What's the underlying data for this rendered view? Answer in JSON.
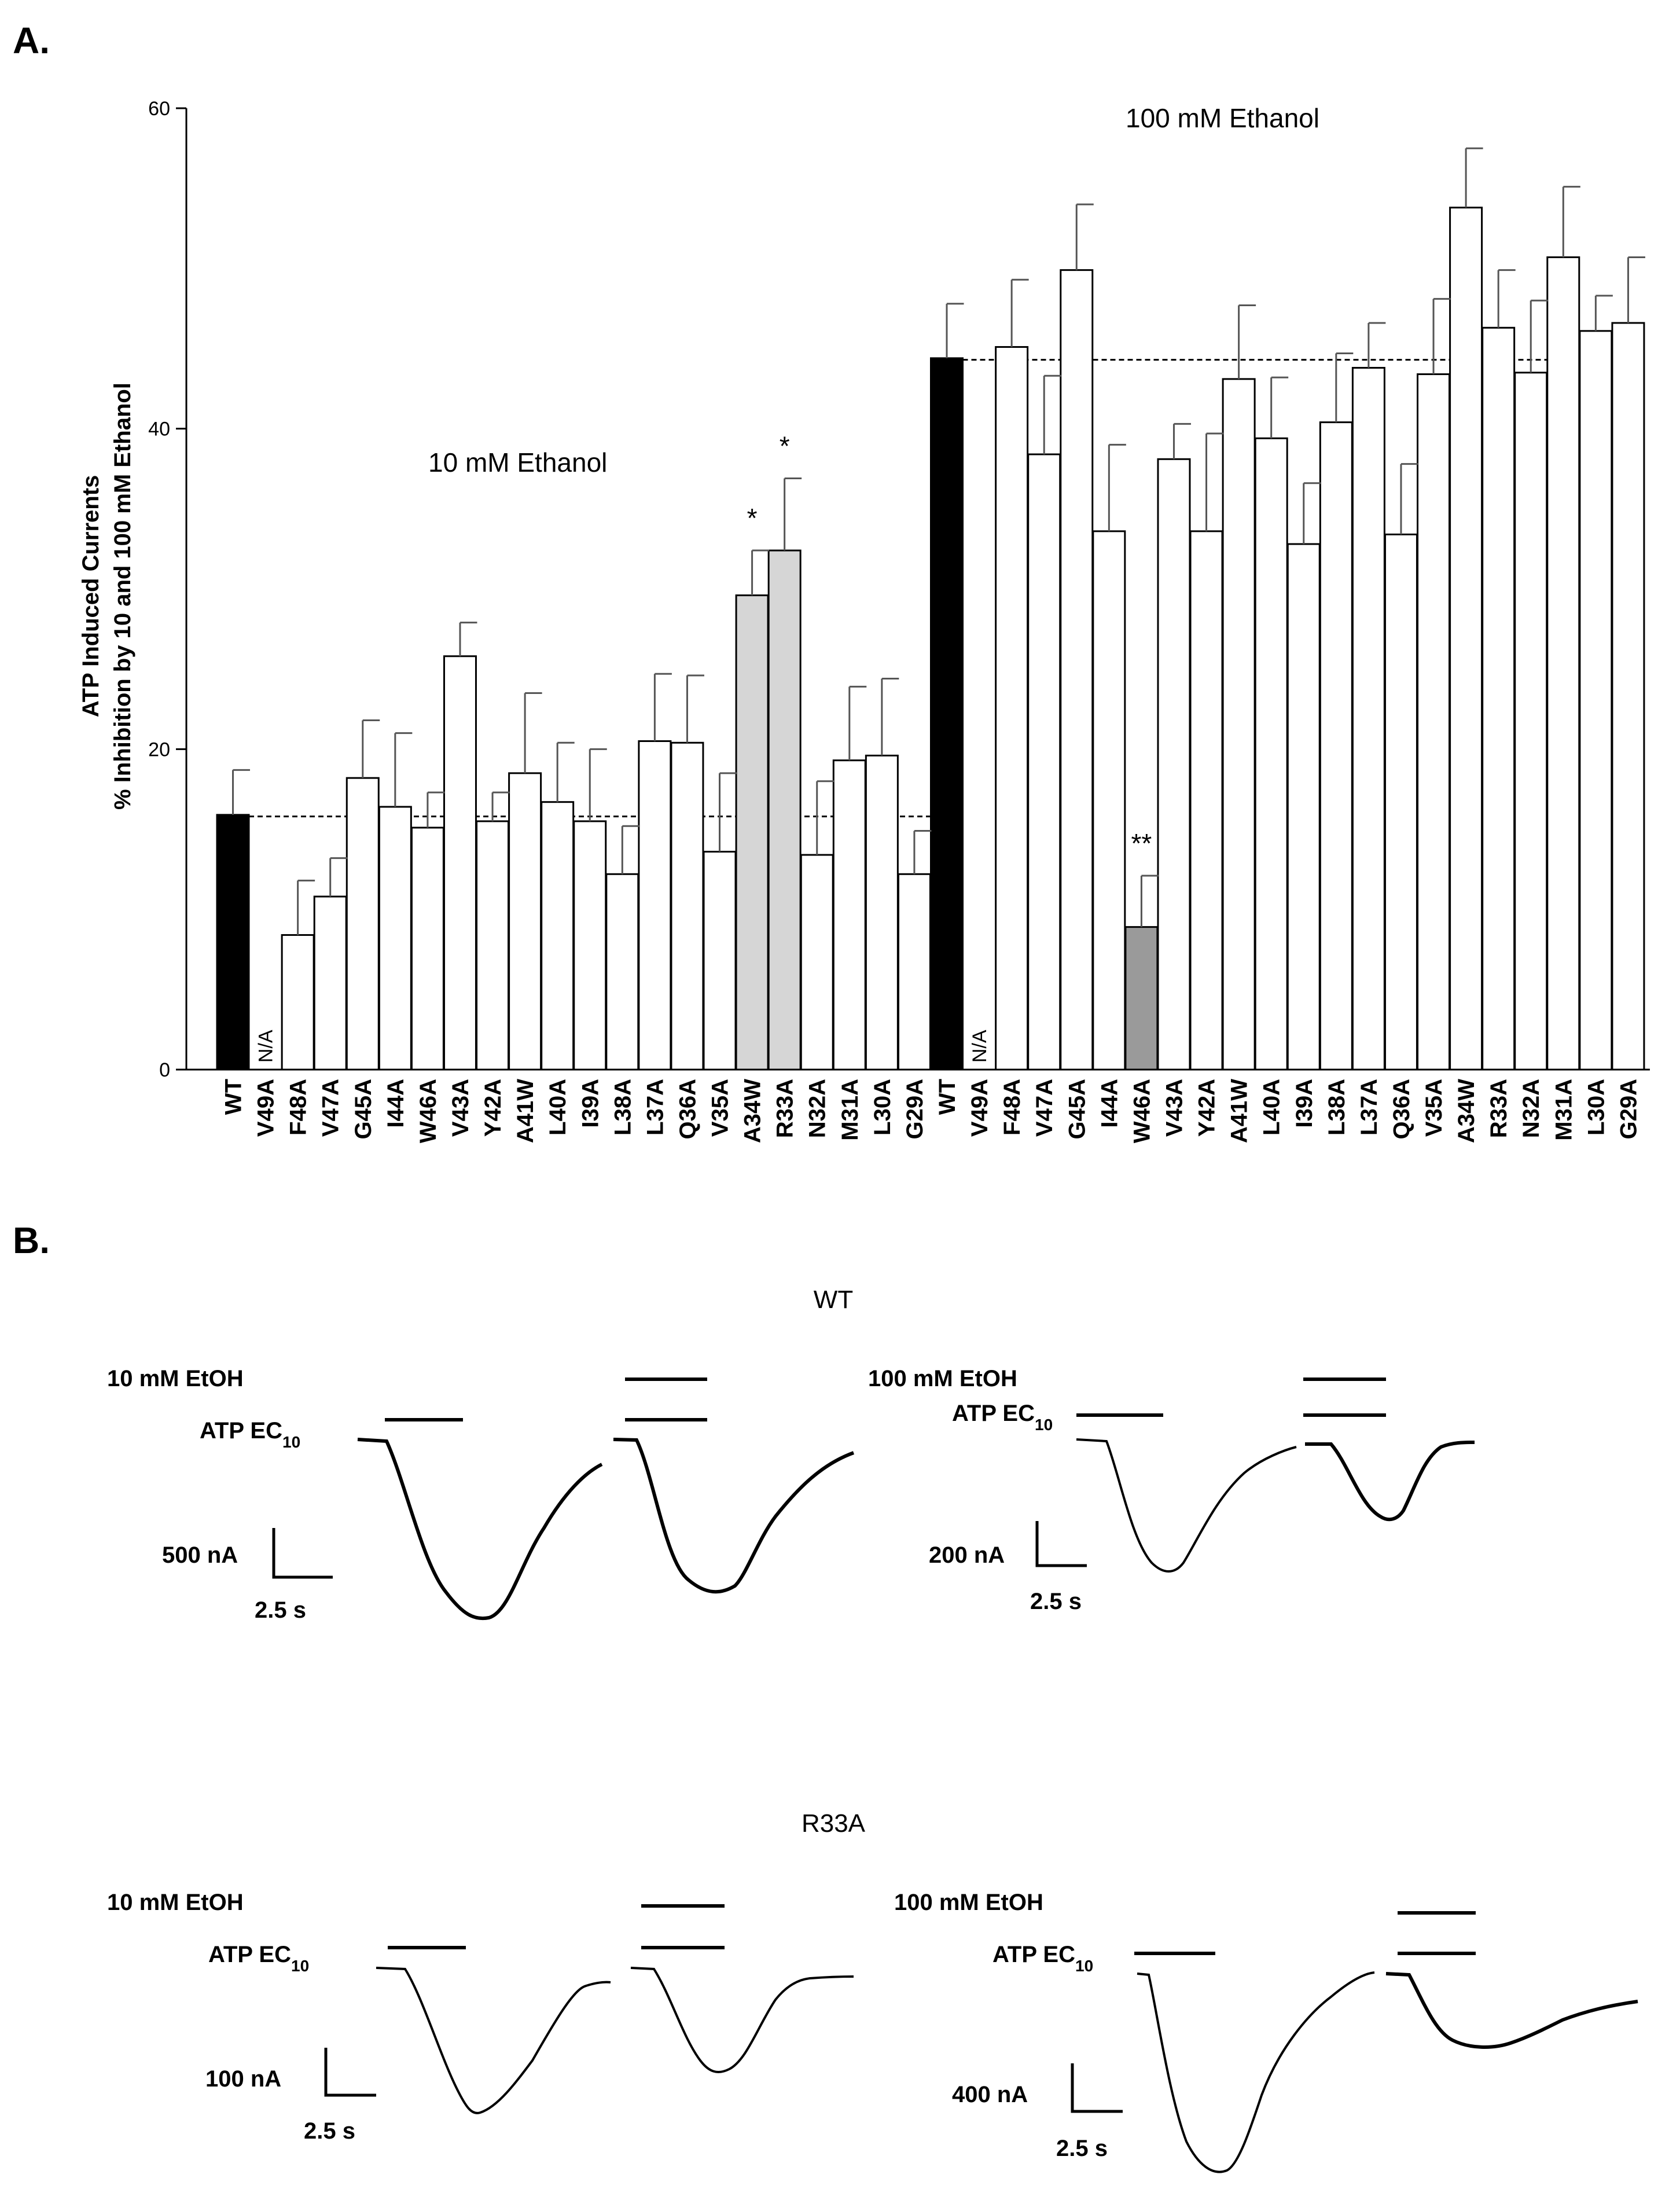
{
  "panels": {
    "a_label": "A.",
    "b_label": "B."
  },
  "chart_data": {
    "type": "bar",
    "ylabel_line1": "ATP Induced Currents",
    "ylabel_line2": "% Inhibition by 10 and 100 mM Ethanol",
    "ylim": [
      0,
      60
    ],
    "yticks": [
      0,
      20,
      40,
      60
    ],
    "reference_lines": [
      {
        "name": "10 mM WT reference",
        "value": 15.8
      },
      {
        "name": "100 mM WT reference",
        "value": 44.3
      }
    ],
    "groups": [
      {
        "name": "10 mM Ethanol",
        "bars": [
          {
            "label": "WT",
            "value": 15.9,
            "error": 2.8,
            "fill": "black"
          },
          {
            "label": "V49A",
            "value": null,
            "na_text": "N/A"
          },
          {
            "label": "F48A",
            "value": 8.4,
            "error": 3.4
          },
          {
            "label": "V47A",
            "value": 10.8,
            "error": 2.4
          },
          {
            "label": "G45A",
            "value": 18.2,
            "error": 3.6
          },
          {
            "label": "I44A",
            "value": 16.4,
            "error": 4.6
          },
          {
            "label": "W46A",
            "value": 15.1,
            "error": 2.2
          },
          {
            "label": "V43A",
            "value": 25.8,
            "error": 2.1
          },
          {
            "label": "Y42A",
            "value": 15.5,
            "error": 1.8
          },
          {
            "label": "A41W",
            "value": 18.5,
            "error": 5.0
          },
          {
            "label": "L40A",
            "value": 16.7,
            "error": 3.7
          },
          {
            "label": "I39A",
            "value": 15.5,
            "error": 4.5
          },
          {
            "label": "L38A",
            "value": 12.2,
            "error": 3.0
          },
          {
            "label": "L37A",
            "value": 20.5,
            "error": 4.2
          },
          {
            "label": "Q36A",
            "value": 20.4,
            "error": 4.2
          },
          {
            "label": "V35A",
            "value": 13.6,
            "error": 4.9
          },
          {
            "label": "A34W",
            "value": 29.6,
            "error": 2.8,
            "fill": "lightgray",
            "annotation": "*"
          },
          {
            "label": "R33A",
            "value": 32.4,
            "error": 4.5,
            "fill": "lightgray",
            "annotation": "*"
          },
          {
            "label": "N32A",
            "value": 13.4,
            "error": 4.6
          },
          {
            "label": "M31A",
            "value": 19.3,
            "error": 4.6
          },
          {
            "label": "L30A",
            "value": 19.6,
            "error": 4.8
          },
          {
            "label": "G29A",
            "value": 12.2,
            "error": 2.7
          }
        ]
      },
      {
        "name": "100 mM Ethanol",
        "bars": [
          {
            "label": "WT",
            "value": 44.4,
            "error": 3.4,
            "fill": "black"
          },
          {
            "label": "V49A",
            "value": null,
            "na_text": "N/A"
          },
          {
            "label": "F48A",
            "value": 45.1,
            "error": 4.2
          },
          {
            "label": "V47A",
            "value": 38.4,
            "error": 4.9
          },
          {
            "label": "G45A",
            "value": 49.9,
            "error": 4.1
          },
          {
            "label": "I44A",
            "value": 33.6,
            "error": 5.4
          },
          {
            "label": "W46A",
            "value": 8.9,
            "error": 3.2,
            "fill": "darkgray",
            "annotation": "**"
          },
          {
            "label": "V43A",
            "value": 38.1,
            "error": 2.2
          },
          {
            "label": "Y42A",
            "value": 33.6,
            "error": 6.1
          },
          {
            "label": "A41W",
            "value": 43.1,
            "error": 4.6
          },
          {
            "label": "L40A",
            "value": 39.4,
            "error": 3.8
          },
          {
            "label": "I39A",
            "value": 32.8,
            "error": 3.8
          },
          {
            "label": "L38A",
            "value": 40.4,
            "error": 4.3
          },
          {
            "label": "L37A",
            "value": 43.8,
            "error": 2.8
          },
          {
            "label": "Q36A",
            "value": 33.4,
            "error": 4.4
          },
          {
            "label": "V35A",
            "value": 43.4,
            "error": 4.7
          },
          {
            "label": "A34W",
            "value": 53.8,
            "error": 3.7
          },
          {
            "label": "R33A",
            "value": 46.3,
            "error": 3.6
          },
          {
            "label": "N32A",
            "value": 43.5,
            "error": 4.5
          },
          {
            "label": "M31A",
            "value": 50.7,
            "error": 4.4
          },
          {
            "label": "L30A",
            "value": 46.1,
            "error": 2.2
          },
          {
            "label": "G29A",
            "value": 46.6,
            "error": 4.1
          }
        ]
      }
    ]
  },
  "panel_b": {
    "wt": {
      "title": "WT",
      "left": {
        "ethanol_label": "10 mM EtOH",
        "atp_label": "ATP EC",
        "atp_sub": "10",
        "scale_current": "500 nA",
        "scale_time": "2.5 s"
      },
      "right": {
        "ethanol_label": "100 mM EtOH",
        "atp_label": "ATP EC",
        "atp_sub": "10",
        "scale_current": "200 nA",
        "scale_time": "2.5 s"
      }
    },
    "r33a": {
      "title": "R33A",
      "left": {
        "ethanol_label": "10 mM EtOH",
        "atp_label": "ATP EC",
        "atp_sub": "10",
        "scale_current": "100 nA",
        "scale_time": "2.5 s"
      },
      "right": {
        "ethanol_label": "100 mM EtOH",
        "atp_label": "ATP EC",
        "atp_sub": "10",
        "scale_current": "400 nA",
        "scale_time": "2.5 s"
      }
    }
  }
}
